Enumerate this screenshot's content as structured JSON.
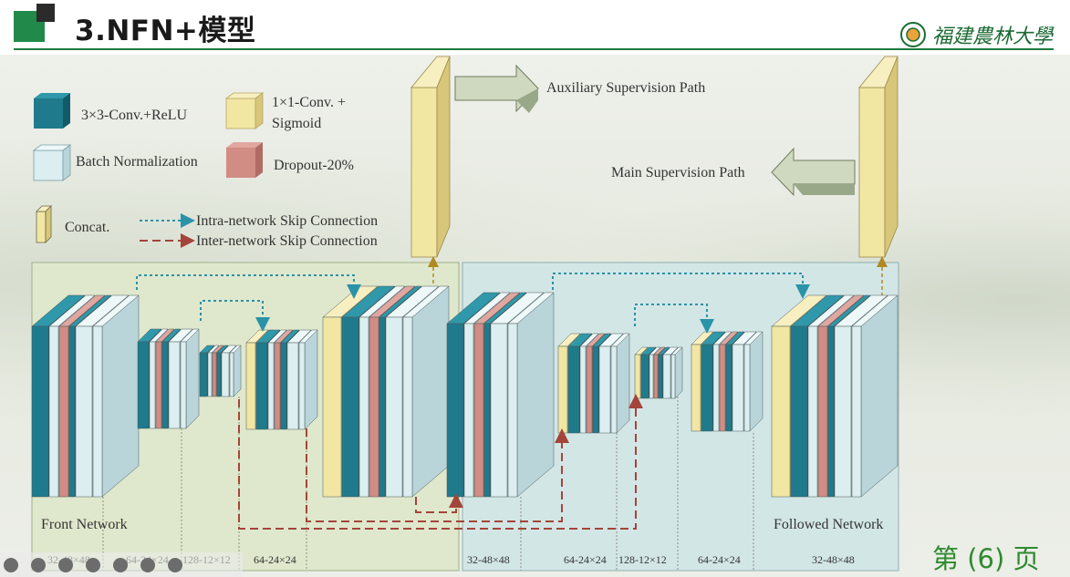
{
  "header": {
    "title": "3.NFN+模型",
    "logo_text": "福建農林大學"
  },
  "page": {
    "number_label": "第 (6) 页"
  },
  "legend": {
    "conv_relu": "3×3-Conv.+ReLU",
    "conv1x1_line1": "1×1-Conv. +",
    "conv1x1_line2": "Sigmoid",
    "batch_norm": "Batch Normalization",
    "dropout": "Dropout-20%",
    "concat": "Concat.",
    "intra": "Intra-network Skip Connection",
    "inter": "Inter-network Skip Connection"
  },
  "paths": {
    "auxiliary": "Auxiliary Supervision Path",
    "main": "Main Supervision Path"
  },
  "networks": {
    "front": "Front Network",
    "followed": "Followed Network"
  },
  "dims": [
    "32-48×48",
    "64-24×24",
    "128-12×12",
    "64-24×24",
    "32-48×48",
    "64-24×24",
    "128-12×12",
    "64-24×24",
    "32-48×48"
  ],
  "colors": {
    "conv": "#1f7a8c",
    "conv_side": "#135a68",
    "conv_top": "#2f98aa",
    "bn": "#dceef0",
    "dropout": "#d18c84",
    "sigmoid": "#f2e6a3",
    "sigmoid_side": "#d8c67a",
    "front_bg": "#dfe8cc",
    "followed_bg": "#d3e6e6",
    "intra": "#2a93a8",
    "inter": "#a3453a",
    "arrow": "#c8d2b6"
  },
  "toolbar_icons": [
    "prev-icon",
    "next-icon",
    "pen-icon",
    "laser-icon",
    "slides-icon",
    "more-icon",
    "back-icon"
  ]
}
